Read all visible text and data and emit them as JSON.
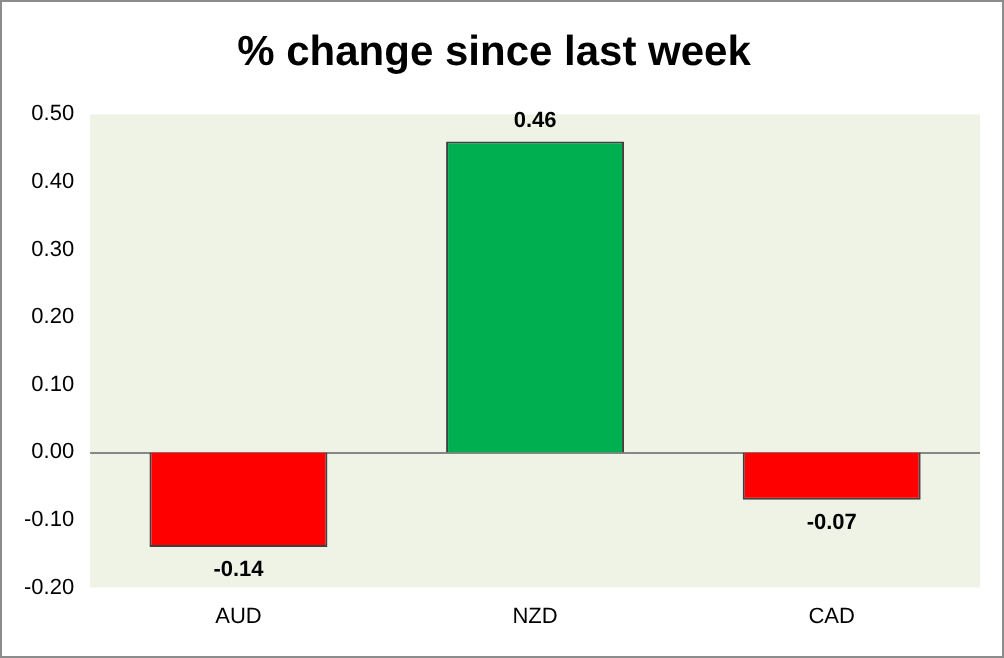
{
  "chart_data": {
    "type": "bar",
    "title": "% change since last week",
    "categories": [
      "AUD",
      "NZD",
      "CAD"
    ],
    "values": [
      -0.14,
      0.46,
      -0.07
    ],
    "colors": [
      "#ff0000",
      "#00b050",
      "#ff0000"
    ],
    "ylim": [
      -0.2,
      0.5
    ],
    "yticks": [
      {
        "value": -0.2,
        "label": "-0.20"
      },
      {
        "value": -0.1,
        "label": "-0.10"
      },
      {
        "value": 0,
        "label": "0.00"
      },
      {
        "value": 0.1,
        "label": "0.10"
      },
      {
        "value": 0.2,
        "label": "0.20"
      },
      {
        "value": 0.3,
        "label": "0.30"
      },
      {
        "value": 0.4,
        "label": "0.40"
      },
      {
        "value": 0.5,
        "label": "0.50"
      }
    ],
    "ref_lines": [
      {
        "axis": "y",
        "value": 0,
        "color": "#868686"
      }
    ],
    "grid": false,
    "legend": false,
    "data_labels": true
  }
}
